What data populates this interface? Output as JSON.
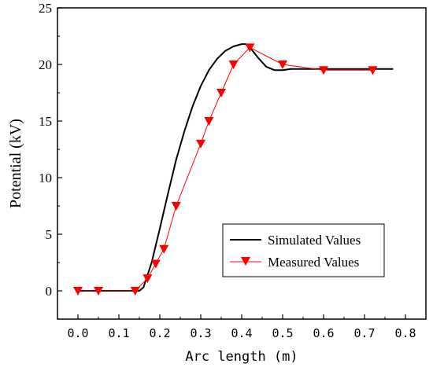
{
  "chart_data": {
    "type": "line",
    "xlabel": "Arc length (m)",
    "ylabel": "Potential (kV)",
    "xlim": [
      -0.05,
      0.85
    ],
    "ylim": [
      -2.5,
      25
    ],
    "x_ticks": [
      0.0,
      0.1,
      0.2,
      0.3,
      0.4,
      0.5,
      0.6,
      0.7,
      0.8
    ],
    "x_tick_labels": [
      "0.0",
      "0.1",
      "0.2",
      "0.3",
      "0.4",
      "0.5",
      "0.6",
      "0.7",
      "0.8"
    ],
    "y_ticks": [
      0,
      5,
      10,
      15,
      20,
      25
    ],
    "y_tick_labels": [
      "0",
      "5",
      "10",
      "15",
      "20",
      "25"
    ],
    "grid": false,
    "legend_position": "bottom-right",
    "colors": {
      "simulated": "#000000",
      "measured": "#ff0000"
    },
    "series": [
      {
        "name": "Simulated Values",
        "style": "line",
        "x": [
          0.0,
          0.15,
          0.16,
          0.18,
          0.2,
          0.22,
          0.24,
          0.26,
          0.28,
          0.3,
          0.32,
          0.34,
          0.36,
          0.38,
          0.4,
          0.41,
          0.42,
          0.44,
          0.46,
          0.48,
          0.5,
          0.52,
          0.6,
          0.7,
          0.77
        ],
        "y": [
          0.0,
          0.0,
          0.3,
          2.5,
          5.5,
          8.6,
          11.6,
          14.1,
          16.3,
          18.1,
          19.5,
          20.5,
          21.2,
          21.6,
          21.8,
          21.8,
          21.5,
          20.6,
          19.8,
          19.5,
          19.5,
          19.6,
          19.6,
          19.6,
          19.6
        ]
      },
      {
        "name": "Measured Values",
        "style": "line-marker",
        "marker": "triangle-down",
        "x": [
          0.0,
          0.05,
          0.14,
          0.17,
          0.19,
          0.21,
          0.24,
          0.3,
          0.32,
          0.35,
          0.38,
          0.42,
          0.5,
          0.6,
          0.72
        ],
        "y": [
          0.0,
          0.0,
          0.0,
          1.1,
          2.4,
          3.7,
          7.5,
          13.0,
          15.0,
          17.5,
          20.0,
          21.5,
          20.0,
          19.5,
          19.5
        ]
      }
    ]
  }
}
